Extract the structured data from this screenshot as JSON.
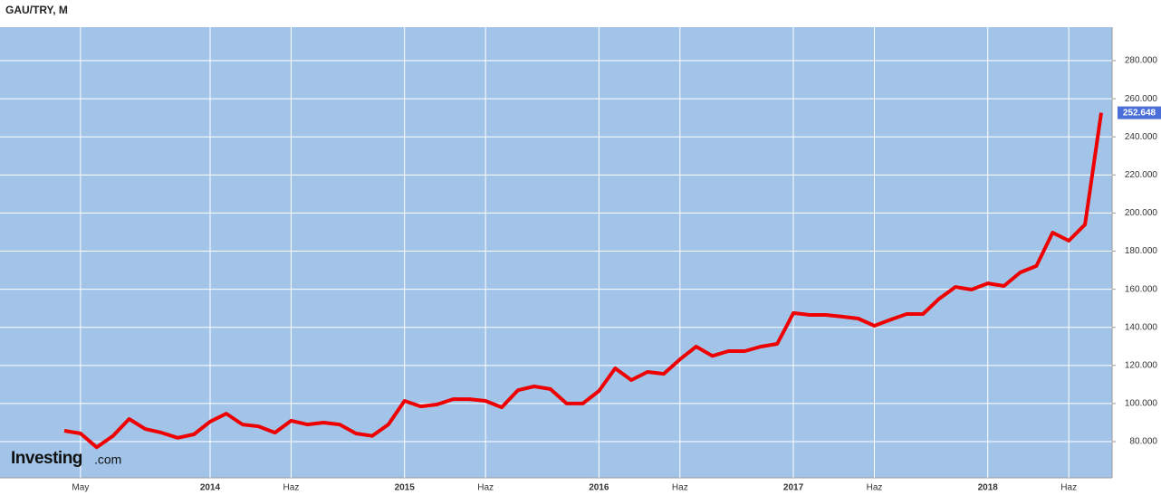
{
  "chart_data": {
    "type": "line",
    "title": "GAU/TRY, M",
    "categories": [
      null,
      "May",
      null,
      null,
      null,
      null,
      null,
      null,
      null,
      "2014",
      null,
      null,
      null,
      null,
      "Haz",
      null,
      null,
      null,
      null,
      null,
      null,
      "2015",
      null,
      null,
      null,
      null,
      "Haz",
      null,
      null,
      null,
      null,
      null,
      null,
      "2016",
      null,
      null,
      null,
      null,
      "Haz",
      null,
      null,
      null,
      null,
      null,
      null,
      "2017",
      null,
      null,
      null,
      null,
      "Haz",
      null,
      null,
      null,
      null,
      null,
      null,
      "2018",
      null,
      null,
      null,
      null,
      "Haz",
      null,
      null
    ],
    "values": [
      85.7,
      84.3,
      77,
      83,
      91.9,
      86.6,
      84.7,
      82,
      83.8,
      90.5,
      94.7,
      89,
      88,
      84.7,
      91,
      89,
      90,
      89,
      84.3,
      83,
      89,
      101.4,
      98.5,
      99.5,
      102.3,
      102.3,
      101.4,
      98,
      107,
      109,
      107.6,
      100,
      100,
      106.6,
      118.5,
      112.3,
      116.6,
      115.6,
      123.2,
      129.9,
      125,
      127.5,
      127.5,
      129.9,
      131.3,
      147.5,
      146.5,
      146.5,
      145.6,
      144.6,
      140.8,
      144,
      147,
      147,
      155,
      161.2,
      159.8,
      163.1,
      161.7,
      168.8,
      172.2,
      189.7,
      185.5,
      194,
      252.648
    ],
    "color": "#ee0000",
    "ylim": [
      61,
      297.6
    ],
    "yticks": [
      {
        "value": 80,
        "label": "80.000"
      },
      {
        "value": 100,
        "label": "100.000"
      },
      {
        "value": 120,
        "label": "120.000"
      },
      {
        "value": 140,
        "label": "140.000"
      },
      {
        "value": 160,
        "label": "160.000"
      },
      {
        "value": 180,
        "label": "180.000"
      },
      {
        "value": 200,
        "label": "200.000"
      },
      {
        "value": 220,
        "label": "220.000"
      },
      {
        "value": 240,
        "label": "240.000"
      },
      {
        "value": 260,
        "label": "260.000"
      },
      {
        "value": 280,
        "label": "280.000"
      }
    ],
    "grid": true
  },
  "logo": {
    "main": "Investing",
    "suffix": ".com"
  }
}
